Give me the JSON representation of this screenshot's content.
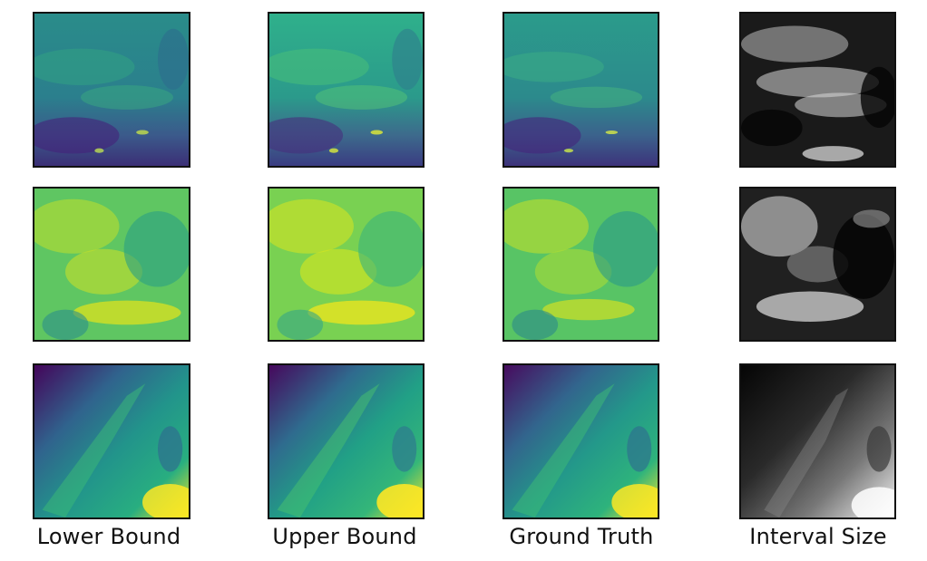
{
  "columns": [
    {
      "key": "lower",
      "label": "Lower Bound"
    },
    {
      "key": "upper",
      "label": "Upper Bound"
    },
    {
      "key": "truth",
      "label": "Ground Truth"
    },
    {
      "key": "interval",
      "label": "Interval Size"
    }
  ],
  "rows": [
    {
      "key": "row-1",
      "colormap": "viridis"
    },
    {
      "key": "row-2",
      "colormap": "viridis"
    },
    {
      "key": "row-3",
      "colormap": "viridis"
    }
  ],
  "interval_colormap": "grayscale"
}
